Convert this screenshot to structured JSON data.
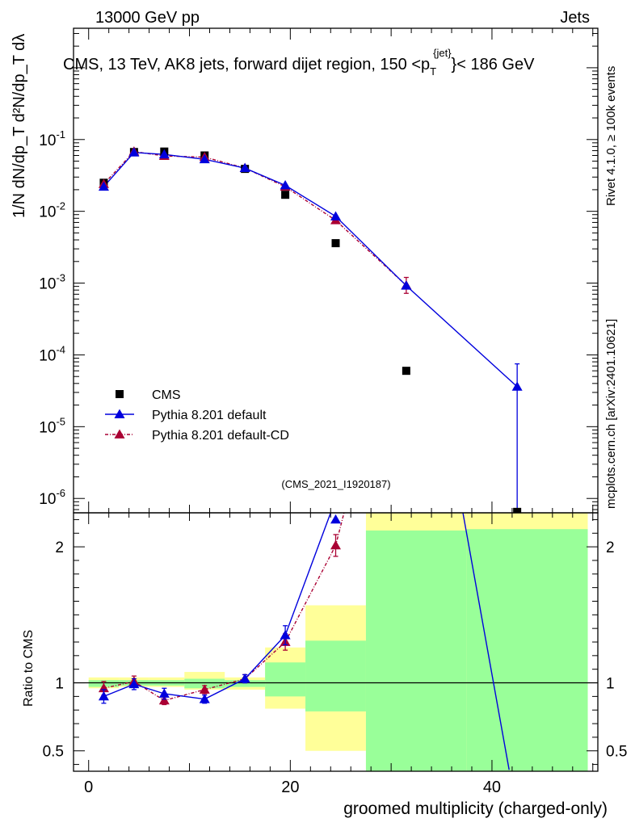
{
  "header": {
    "left": "13000 GeV pp",
    "right": "Jets"
  },
  "plot_title": "CMS, 13 TeV, AK8 jets, forward dijet region, 150 <p_T^{jet}> < 186 GeV",
  "title_parts": {
    "main": "CMS, 13 TeV, AK8 jets, forward dijet region, 150 <p",
    "sub": "T",
    "sup": "{jet}",
    "tail": "}< 186 GeV"
  },
  "side_labels": {
    "rivet": "Rivet 4.1.0, ≥ 100k events",
    "mcplots": "mcplots.cern.ch [arXiv:2401.10621]"
  },
  "analysis_id": "(CMS_2021_I1920187)",
  "ylabel_top": "1/N dN/dp_T d²N/dp_T dλ",
  "ylabel_ratio": "Ratio to CMS",
  "xlabel": "groomed multiplicity (charged-only)",
  "colors": {
    "cms": "#000000",
    "pythia_default": "#0000dd",
    "pythia_cd": "#aa0033",
    "band_inner": "#99ff99",
    "band_outer": "#ffff99"
  },
  "legend": [
    {
      "key": "cms",
      "label": "CMS"
    },
    {
      "key": "pythia_default",
      "label": "Pythia 8.201 default"
    },
    {
      "key": "pythia_cd",
      "label": "Pythia 8.201 default-CD"
    }
  ],
  "chart_data": {
    "type": "scatter",
    "x_axis": {
      "range": [
        -1.5,
        50.5
      ],
      "ticks": [
        0,
        20,
        40
      ],
      "label": "groomed multiplicity (charged-only)"
    },
    "main_y_axis": {
      "scale": "log",
      "range_exp": [
        -6.2,
        0.55
      ],
      "tick_labels": [
        "10^-6",
        "10^-5",
        "10^-4",
        "10^-3",
        "10^-2",
        "10^-1"
      ]
    },
    "ratio_y_axis": {
      "range": [
        0.35,
        2.25
      ],
      "ticks": [
        0.5,
        1,
        2
      ],
      "tick_labels": [
        "0.5",
        "1",
        "2"
      ]
    },
    "series": [
      {
        "key": "cms",
        "name": "CMS",
        "points": [
          {
            "x": 1.5,
            "y": 0.025
          },
          {
            "x": 4.5,
            "y": 0.067
          },
          {
            "x": 7.5,
            "y": 0.068
          },
          {
            "x": 11.5,
            "y": 0.06
          },
          {
            "x": 15.5,
            "y": 0.039
          },
          {
            "x": 19.5,
            "y": 0.017
          },
          {
            "x": 24.5,
            "y": 0.0036
          },
          {
            "x": 31.5,
            "y": 6e-05
          },
          {
            "x": 42.5,
            "y": 6.5e-07
          }
        ]
      },
      {
        "key": "pythia_default",
        "name": "Pythia 8.201 default",
        "points": [
          {
            "x": 1.5,
            "y": 0.022
          },
          {
            "x": 4.5,
            "y": 0.066
          },
          {
            "x": 7.5,
            "y": 0.062
          },
          {
            "x": 11.5,
            "y": 0.053
          },
          {
            "x": 15.5,
            "y": 0.04
          },
          {
            "x": 19.5,
            "y": 0.023
          },
          {
            "x": 24.5,
            "y": 0.0085
          },
          {
            "x": 31.5,
            "y": 0.00092
          },
          {
            "x": 42.5,
            "y": 3.6e-05,
            "err_up": 7.5e-05
          }
        ]
      },
      {
        "key": "pythia_cd",
        "name": "Pythia 8.201 default-CD",
        "points": [
          {
            "x": 1.5,
            "y": 0.024
          },
          {
            "x": 4.5,
            "y": 0.068
          },
          {
            "x": 7.5,
            "y": 0.059
          },
          {
            "x": 11.5,
            "y": 0.057
          },
          {
            "x": 15.5,
            "y": 0.04
          },
          {
            "x": 19.5,
            "y": 0.022
          },
          {
            "x": 24.5,
            "y": 0.0075
          },
          {
            "x": 31.5,
            "y": 0.00093,
            "err_lo": 0.00072,
            "err_hi": 0.0012
          }
        ]
      }
    ],
    "ratio": {
      "pythia_default": [
        {
          "x": 1.5,
          "y": 0.9,
          "err": 0.05
        },
        {
          "x": 4.5,
          "y": 0.99,
          "err": 0.04
        },
        {
          "x": 7.5,
          "y": 0.92,
          "err": 0.04
        },
        {
          "x": 11.5,
          "y": 0.88,
          "err": 0.03
        },
        {
          "x": 15.5,
          "y": 1.03,
          "err": 0.03
        },
        {
          "x": 19.5,
          "y": 1.35,
          "err": 0.07
        },
        {
          "x": 24.5,
          "y": 2.35
        },
        {
          "x": 37.0,
          "y": 2.3
        },
        {
          "x": 41.7,
          "y": 0.36
        }
      ],
      "pythia_cd": [
        {
          "x": 1.5,
          "y": 0.96,
          "err": 0.05
        },
        {
          "x": 4.5,
          "y": 1.01,
          "err": 0.04
        },
        {
          "x": 7.5,
          "y": 0.87,
          "err": 0.03
        },
        {
          "x": 11.5,
          "y": 0.95,
          "err": 0.03
        },
        {
          "x": 15.5,
          "y": 1.03,
          "err": 0.03
        },
        {
          "x": 19.5,
          "y": 1.3,
          "err": 0.06
        },
        {
          "x": 24.5,
          "y": 2.01,
          "err": 0.08
        },
        {
          "x": 25.5,
          "y": 2.3
        }
      ],
      "bands": [
        {
          "x0": 0,
          "x1": 3,
          "in_lo": 0.97,
          "in_hi": 1.02,
          "out_lo": 0.96,
          "out_hi": 1.04
        },
        {
          "x0": 3,
          "x1": 6,
          "in_lo": 0.98,
          "in_hi": 1.02,
          "out_lo": 0.97,
          "out_hi": 1.04
        },
        {
          "x0": 6,
          "x1": 9.5,
          "in_lo": 0.98,
          "in_hi": 1.02,
          "out_lo": 0.97,
          "out_hi": 1.04
        },
        {
          "x0": 9.5,
          "x1": 13.5,
          "in_lo": 0.96,
          "in_hi": 1.03,
          "out_lo": 0.95,
          "out_hi": 1.08
        },
        {
          "x0": 13.5,
          "x1": 17.5,
          "in_lo": 0.97,
          "in_hi": 1.02,
          "out_lo": 0.95,
          "out_hi": 1.04
        },
        {
          "x0": 17.5,
          "x1": 21.5,
          "in_lo": 0.9,
          "in_hi": 1.15,
          "out_lo": 0.81,
          "out_hi": 1.26
        },
        {
          "x0": 21.5,
          "x1": 27.5,
          "in_lo": 0.79,
          "in_hi": 1.31,
          "out_lo": 0.5,
          "out_hi": 1.57
        },
        {
          "x0": 27.5,
          "x1": 37.5,
          "in_lo": 0.35,
          "in_hi": 2.12,
          "out_lo": 0.35,
          "out_hi": 2.25
        },
        {
          "x0": 37.5,
          "x1": 49.5,
          "in_lo": 0.35,
          "in_hi": 2.13,
          "out_lo": 0.35,
          "out_hi": 2.25
        }
      ],
      "reference_line": 1
    }
  }
}
